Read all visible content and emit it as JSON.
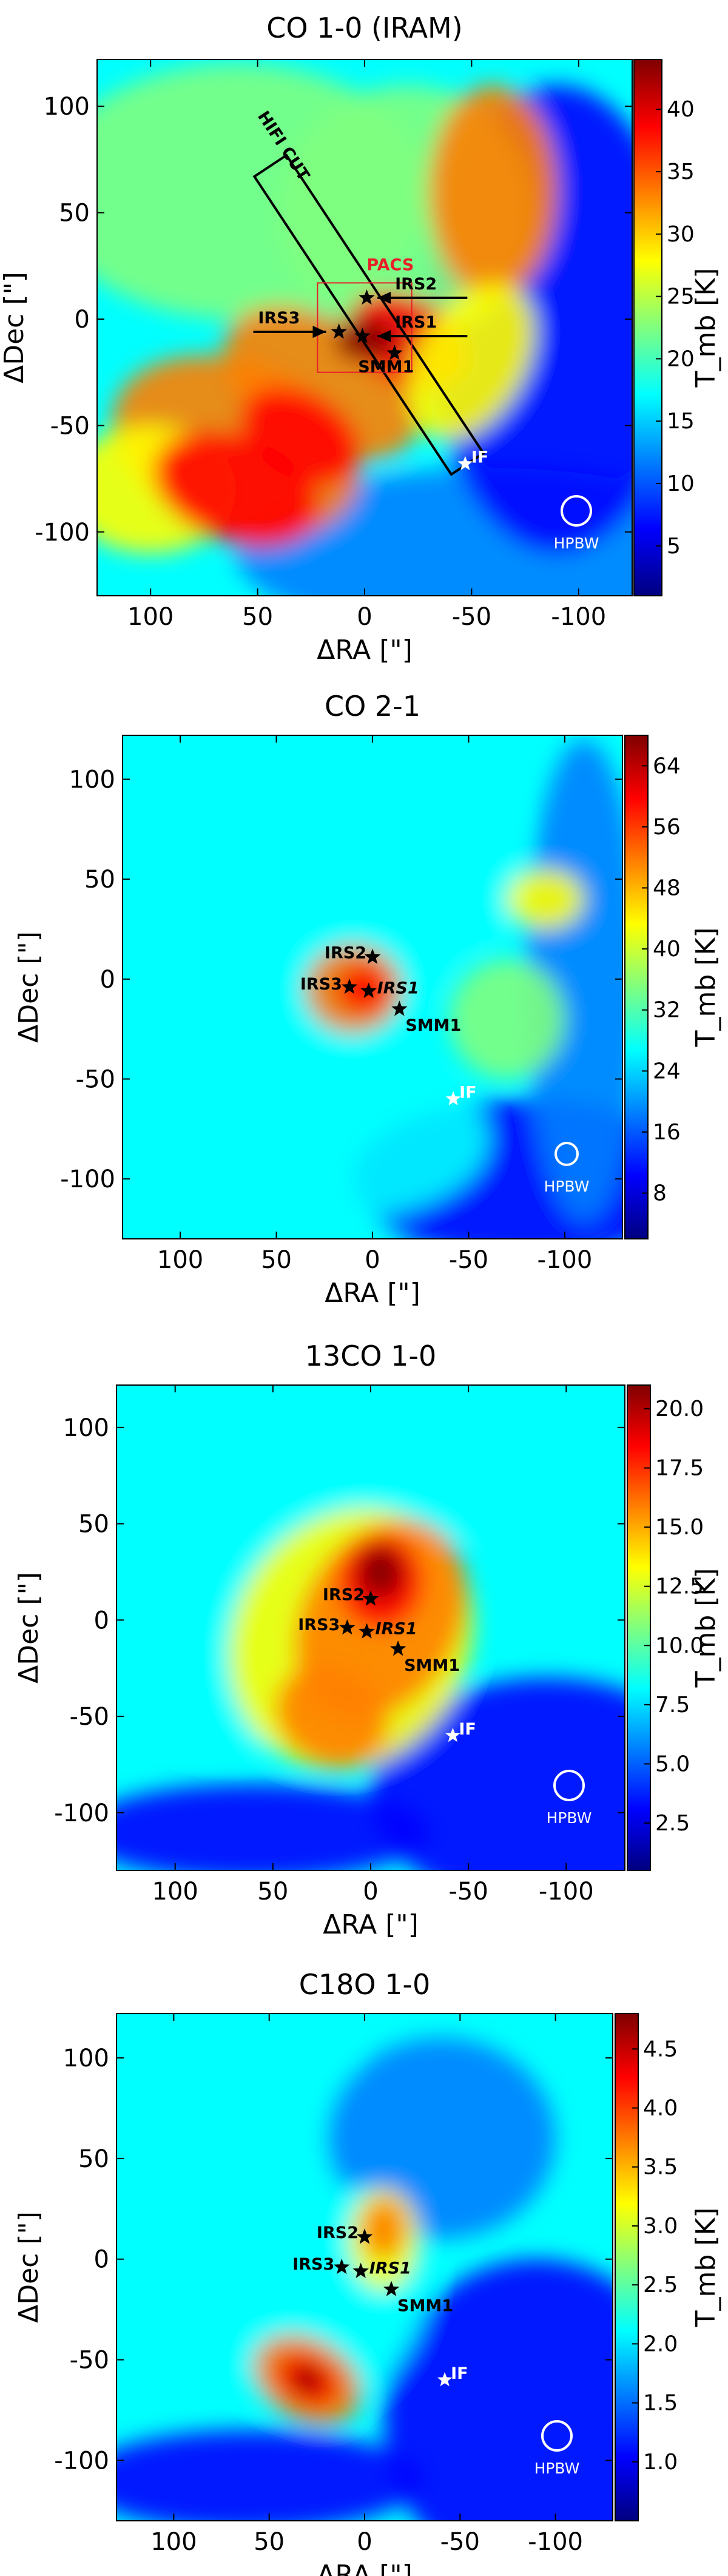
{
  "colors": {
    "jet": [
      "#00007f",
      "#0000ff",
      "#007fff",
      "#00ffff",
      "#7fff7f",
      "#ffff00",
      "#ff7f00",
      "#ff0000",
      "#7f0000"
    ],
    "marker_black": "#000000",
    "marker_white": "#ffffff",
    "pacs_box": "#e8202a"
  },
  "icons": {
    "star": "star-marker-icon",
    "arrow": "arrow-icon",
    "beam": "circle-icon"
  },
  "chart_data": [
    {
      "type": "heatmap",
      "title": "CO 1-0 (IRAM)",
      "xlabel": "ΔRA [\"]",
      "ylabel": "ΔDec [\"]",
      "colorbar_label": "T_mb [K]",
      "colorbar_ticks": [
        "5",
        "10",
        "15",
        "20",
        "25",
        "30",
        "35",
        "40"
      ],
      "colorbar_range": [
        1,
        44
      ],
      "xlim": [
        125,
        -125
      ],
      "ylim": [
        -130,
        122
      ],
      "xticks": [
        "100",
        "50",
        "0",
        "-50",
        "-100"
      ],
      "yticks": [
        "100",
        "50",
        "0",
        "-50",
        "-100"
      ],
      "sources": [
        {
          "name": "IRS2",
          "x": -1,
          "y": 10,
          "italic": false
        },
        {
          "name": "IRS3",
          "x": 12,
          "y": -6,
          "italic": false
        },
        {
          "name": "IRS1",
          "x": 1,
          "y": -8,
          "italic": false
        },
        {
          "name": "SMM1",
          "x": -14,
          "y": -16,
          "italic": false
        }
      ],
      "if_marker": {
        "name": "IF",
        "x": -47,
        "y": -68
      },
      "hifi_cut_label": "HIFI CUT",
      "pacs_label": "PACS",
      "beam_label": "HPBW"
    },
    {
      "type": "heatmap",
      "title": "CO 2-1",
      "xlabel": "ΔRA [\"]",
      "ylabel": "ΔDec [\"]",
      "colorbar_label": "T_mb [K]",
      "colorbar_ticks": [
        "8",
        "16",
        "24",
        "32",
        "40",
        "48",
        "56",
        "64"
      ],
      "colorbar_range": [
        2,
        68
      ],
      "xlim": [
        130,
        -130
      ],
      "ylim": [
        -130,
        122
      ],
      "xticks": [
        "100",
        "50",
        "0",
        "-50",
        "-100"
      ],
      "yticks": [
        "100",
        "50",
        "0",
        "-50",
        "-100"
      ],
      "sources": [
        {
          "name": "IRS2",
          "x": 0,
          "y": 11,
          "italic": false
        },
        {
          "name": "IRS3",
          "x": 12,
          "y": -4,
          "italic": false
        },
        {
          "name": "IRS1",
          "x": 2,
          "y": -6,
          "italic": true
        },
        {
          "name": "SMM1",
          "x": -14,
          "y": -15,
          "italic": false
        }
      ],
      "if_marker": {
        "name": "IF",
        "x": -42,
        "y": -60
      },
      "beam_label": "HPBW"
    },
    {
      "type": "heatmap",
      "title": "13CO 1-0",
      "xlabel": "ΔRA [\"]",
      "ylabel": "ΔDec [\"]",
      "colorbar_label": "T_mb [K]",
      "colorbar_ticks": [
        "2.5",
        "5.0",
        "7.5",
        "10.0",
        "12.5",
        "15.0",
        "17.5",
        "20.0"
      ],
      "colorbar_range": [
        0.5,
        21
      ],
      "xlim": [
        130,
        -130
      ],
      "ylim": [
        -130,
        122
      ],
      "xticks": [
        "100",
        "50",
        "0",
        "-50",
        "-100"
      ],
      "yticks": [
        "100",
        "50",
        "0",
        "-50",
        "-100"
      ],
      "sources": [
        {
          "name": "IRS2",
          "x": 0,
          "y": 11,
          "italic": false
        },
        {
          "name": "IRS3",
          "x": 12,
          "y": -4,
          "italic": false
        },
        {
          "name": "IRS1",
          "x": 2,
          "y": -6,
          "italic": true
        },
        {
          "name": "SMM1",
          "x": -14,
          "y": -15,
          "italic": false
        }
      ],
      "if_marker": {
        "name": "IF",
        "x": -42,
        "y": -60
      },
      "beam_label": "HPBW"
    },
    {
      "type": "heatmap",
      "title": "C18O 1-0",
      "xlabel": "ΔRA [\"]",
      "ylabel": "ΔDec [\"]",
      "colorbar_label": "T_mb [K]",
      "colorbar_ticks": [
        "1.0",
        "1.5",
        "2.0",
        "2.5",
        "3.0",
        "3.5",
        "4.0",
        "4.5"
      ],
      "colorbar_range": [
        0.5,
        4.8
      ],
      "xlim": [
        130,
        -130
      ],
      "ylim": [
        -130,
        122
      ],
      "xticks": [
        "100",
        "50",
        "0",
        "-50",
        "-100"
      ],
      "yticks": [
        "100",
        "50",
        "0",
        "-50",
        "-100"
      ],
      "sources": [
        {
          "name": "IRS2",
          "x": 0,
          "y": 11,
          "italic": false
        },
        {
          "name": "IRS3",
          "x": 12,
          "y": -4,
          "italic": false
        },
        {
          "name": "IRS1",
          "x": 2,
          "y": -6,
          "italic": true
        },
        {
          "name": "SMM1",
          "x": -14,
          "y": -15,
          "italic": false
        }
      ],
      "if_marker": {
        "name": "IF",
        "x": -42,
        "y": -60
      },
      "beam_label": "HPBW"
    }
  ]
}
